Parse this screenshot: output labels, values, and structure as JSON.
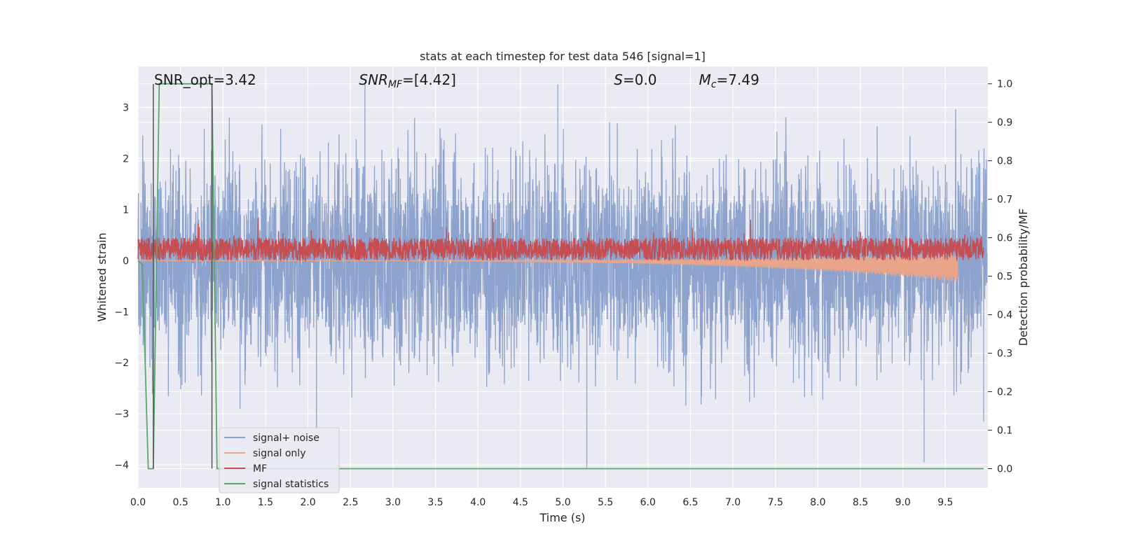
{
  "chart_data": {
    "type": "line",
    "title": "stats at each timestep for test data 546 [signal=1]",
    "xlabel": "Time (s)",
    "ylabel": "Whitened strain",
    "ylabel_right": "Detection probability/MF",
    "xlim": [
      0.0,
      10.0
    ],
    "ylim": [
      -4.45,
      3.8
    ],
    "ylim_right": [
      -0.05,
      1.045
    ],
    "xticks": [
      "0.0",
      "0.5",
      "1.0",
      "1.5",
      "2.0",
      "2.5",
      "3.0",
      "3.5",
      "4.0",
      "4.5",
      "5.0",
      "5.5",
      "6.0",
      "6.5",
      "7.0",
      "7.5",
      "8.0",
      "8.5",
      "9.0",
      "9.5"
    ],
    "xtick_values": [
      0.0,
      0.5,
      1.0,
      1.5,
      2.0,
      2.5,
      3.0,
      3.5,
      4.0,
      4.5,
      5.0,
      5.5,
      6.0,
      6.5,
      7.0,
      7.5,
      8.0,
      8.5,
      9.0,
      9.5
    ],
    "yticks": [
      "−4",
      "−3",
      "−2",
      "−1",
      "0",
      "1",
      "2",
      "3"
    ],
    "ytick_values": [
      -4,
      -3,
      -2,
      -1,
      0,
      1,
      2,
      3
    ],
    "yticks_right": [
      "0.0",
      "0.1",
      "0.2",
      "0.3",
      "0.4",
      "0.5",
      "0.6",
      "0.7",
      "0.8",
      "0.9",
      "1.0"
    ],
    "ytick_values_right": [
      0.0,
      0.1,
      0.2,
      0.3,
      0.4,
      0.5,
      0.6,
      0.7,
      0.8,
      0.9,
      1.0
    ],
    "grid": true,
    "legend_position": "lower-left",
    "annotations": [
      {
        "id": "snr-opt",
        "text": "SNR_opt=3.42",
        "x": 0.19
      },
      {
        "id": "snr-mf",
        "prefix": "SNR",
        "sub": "MF",
        "suffix": "=[4.42]",
        "x": 2.6
      },
      {
        "id": "s-stat",
        "prefix": "S",
        "sub": "",
        "suffix": "=0.0",
        "x": 5.6
      },
      {
        "id": "mc",
        "prefix": "M",
        "sub": "c",
        "suffix": "=7.49",
        "x": 6.6
      }
    ],
    "vlines": [
      0.18,
      0.87
    ],
    "series": [
      {
        "name": "signal+ noise",
        "color": "#8da3cd",
        "axis": "left",
        "kind": "noise",
        "band": 1.15,
        "extreme_spikes": [
          {
            "x": 1.2,
            "y": -2.9
          },
          {
            "x": 2.1,
            "y": -3.3
          },
          {
            "x": 5.28,
            "y": -4.05
          },
          {
            "x": 9.25,
            "y": -3.95
          },
          {
            "x": 2.67,
            "y": 3.5
          },
          {
            "x": 4.94,
            "y": 3.45
          },
          {
            "x": 9.95,
            "y": -3.15
          }
        ]
      },
      {
        "name": "signal only",
        "color": "#e8a58a",
        "axis": "left",
        "kind": "chirp",
        "x_end": 9.65,
        "amp_end": 0.28
      },
      {
        "name": "MF",
        "color": "#c44e52",
        "axis": "left",
        "kind": "mf",
        "x_end": 9.95,
        "base": 0.0,
        "band": 0.45
      },
      {
        "name": "signal statistics",
        "color": "#55a868",
        "axis": "right",
        "kind": "step",
        "points": [
          [
            0.0,
            0.54
          ],
          [
            0.05,
            0.53
          ],
          [
            0.12,
            0.0
          ],
          [
            0.18,
            0.0
          ],
          [
            0.25,
            1.0
          ],
          [
            0.87,
            1.0
          ],
          [
            0.93,
            0.0
          ],
          [
            9.95,
            0.0
          ]
        ]
      }
    ]
  }
}
